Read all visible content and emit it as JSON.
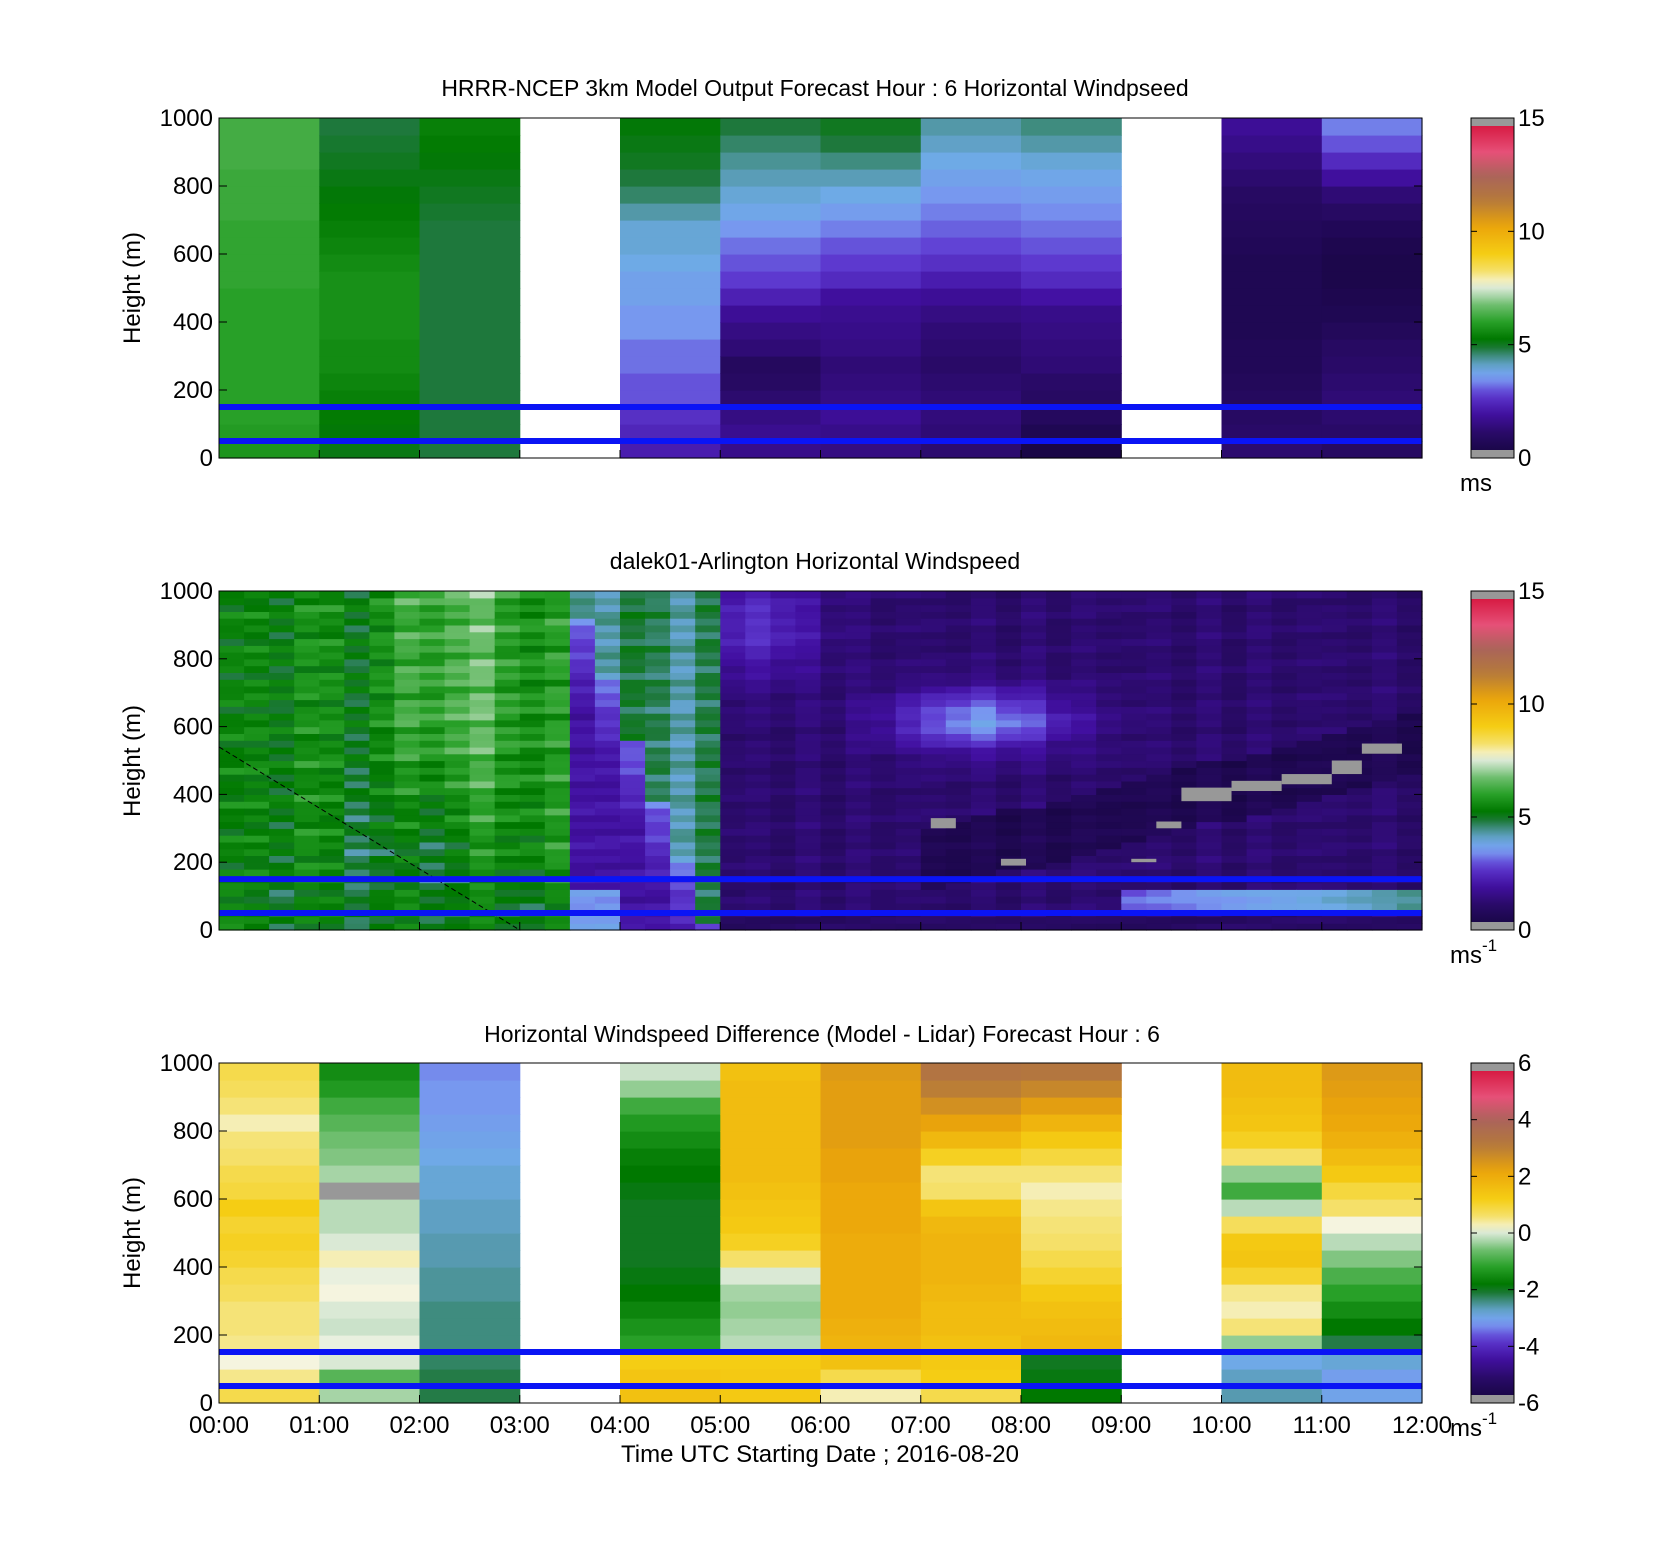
{
  "figure": {
    "xlabel": "Time UTC  Starting Date ; 2016-08-20",
    "x_tick_labels": [
      "00:00",
      "01:00",
      "02:00",
      "03:00",
      "04:00",
      "05:00",
      "06:00",
      "07:00",
      "08:00",
      "09:00",
      "10:00",
      "11:00",
      "12:00"
    ],
    "reference_line_color": "#0a14f5"
  },
  "chart_data": [
    {
      "type": "heatmap",
      "id": "model",
      "title": "HRRR-NCEP 3km Model Output   Forecast Hour : 6 Horizontal Windpseed",
      "ylabel": "Height (m)",
      "y_ticks": [
        "0",
        "200",
        "400",
        "600",
        "800",
        "1000"
      ],
      "ylim": [
        0,
        1000
      ],
      "xlim_hours": [
        0,
        12
      ],
      "colorbar": {
        "min": 0,
        "max": 15,
        "ticks": [
          "0",
          "5",
          "10",
          "15"
        ],
        "unit": "ms",
        "unit_sup": ""
      },
      "reference_lines_m": [
        50,
        150
      ],
      "heights_m": [
        25,
        75,
        125,
        175,
        225,
        275,
        325,
        375,
        425,
        475,
        525,
        575,
        625,
        675,
        725,
        775,
        825,
        875,
        925,
        975
      ],
      "columns_hour_start": [
        0,
        1,
        2,
        3,
        4,
        5,
        6,
        7,
        8,
        9,
        10,
        11
      ],
      "values_ms": [
        [
          5.8,
          5.9,
          6.0,
          6.0,
          6.0,
          6.0,
          6.0,
          6.0,
          6.0,
          6.0,
          6.1,
          6.1,
          6.1,
          6.1,
          6.2,
          6.2,
          6.2,
          6.3,
          6.3,
          6.3
        ],
        [
          5.1,
          5.2,
          5.3,
          5.4,
          5.5,
          5.6,
          5.6,
          5.7,
          5.7,
          5.7,
          5.7,
          5.6,
          5.5,
          5.4,
          5.3,
          5.2,
          5.1,
          5.0,
          4.9,
          4.8
        ],
        [
          4.8,
          4.8,
          4.8,
          4.8,
          4.8,
          4.8,
          4.8,
          4.8,
          4.8,
          4.8,
          4.8,
          4.8,
          4.8,
          4.8,
          4.9,
          5.0,
          5.1,
          5.2,
          5.3,
          5.4
        ],
        [
          null,
          null,
          null,
          null,
          null,
          null,
          null,
          null,
          null,
          null,
          null,
          null,
          null,
          null,
          null,
          null,
          null,
          null,
          null,
          null
        ],
        [
          2.2,
          2.4,
          2.6,
          3.0,
          3.0,
          3.2,
          3.2,
          3.5,
          3.5,
          3.7,
          3.7,
          3.9,
          4.0,
          4.0,
          4.3,
          4.6,
          4.8,
          5.0,
          5.1,
          5.2
        ],
        [
          1.6,
          1.7,
          1.5,
          1.2,
          1.0,
          0.9,
          1.3,
          1.5,
          1.8,
          2.3,
          2.8,
          3.0,
          3.2,
          3.5,
          3.8,
          4.0,
          4.2,
          4.4,
          4.6,
          4.8
        ],
        [
          1.5,
          1.6,
          1.8,
          1.5,
          1.4,
          1.3,
          1.5,
          1.6,
          1.7,
          1.9,
          2.5,
          2.8,
          3.0,
          3.3,
          3.6,
          3.9,
          4.2,
          4.5,
          4.8,
          5.0
        ],
        [
          1.2,
          1.3,
          1.4,
          1.3,
          1.2,
          1.1,
          1.2,
          1.3,
          1.5,
          1.8,
          2.2,
          2.6,
          2.9,
          3.1,
          3.3,
          3.5,
          3.7,
          3.9,
          4.1,
          4.3
        ],
        [
          0.3,
          0.6,
          0.9,
          1.0,
          1.1,
          1.3,
          1.4,
          1.5,
          1.6,
          2.0,
          2.5,
          2.8,
          3.0,
          3.2,
          3.4,
          3.6,
          3.8,
          4.0,
          4.3,
          4.5
        ],
        [
          null,
          null,
          null,
          null,
          null,
          null,
          null,
          null,
          null,
          null,
          null,
          null,
          null,
          null,
          null,
          null,
          null,
          null,
          null,
          null
        ],
        [
          1.2,
          1.1,
          1.0,
          0.9,
          0.8,
          0.7,
          0.7,
          0.6,
          0.6,
          0.6,
          0.6,
          0.6,
          0.7,
          0.8,
          0.9,
          1.0,
          1.2,
          1.4,
          1.6,
          1.8
        ],
        [
          1.0,
          1.1,
          1.2,
          1.3,
          1.2,
          1.1,
          1.0,
          0.8,
          0.6,
          0.5,
          0.4,
          0.4,
          0.5,
          0.7,
          1.0,
          1.3,
          1.9,
          2.5,
          3.0,
          3.3
        ]
      ]
    },
    {
      "type": "heatmap",
      "id": "lidar",
      "title": "dalek01-Arlington  Horizontal Windspeed",
      "ylabel": "Height (m)",
      "y_ticks": [
        "0",
        "200",
        "400",
        "600",
        "800",
        "1000"
      ],
      "ylim": [
        0,
        1000
      ],
      "xlim_hours": [
        0,
        12
      ],
      "data_end_hour": 11.8,
      "colorbar": {
        "min": 0,
        "max": 15,
        "ticks": [
          "0",
          "5",
          "10",
          "15"
        ],
        "unit": "ms",
        "unit_sup": "-1"
      },
      "reference_lines_m": [
        50,
        150
      ],
      "dashed_line_m": [
        [
          0.0,
          540
        ],
        [
          3.0,
          0
        ]
      ],
      "invalid_blocks": [
        {
          "t0": 7.1,
          "t1": 7.35,
          "z0": 300,
          "z1": 330
        },
        {
          "t0": 7.8,
          "t1": 8.05,
          "z0": 190,
          "z1": 210
        },
        {
          "t0": 9.1,
          "t1": 9.35,
          "z0": 200,
          "z1": 210
        },
        {
          "t0": 9.35,
          "t1": 9.6,
          "z0": 300,
          "z1": 320
        },
        {
          "t0": 9.6,
          "t1": 10.1,
          "z0": 380,
          "z1": 420
        },
        {
          "t0": 10.1,
          "t1": 10.6,
          "z0": 410,
          "z1": 440
        },
        {
          "t0": 10.6,
          "t1": 11.1,
          "z0": 430,
          "z1": 460
        },
        {
          "t0": 11.1,
          "t1": 11.4,
          "z0": 460,
          "z1": 500
        },
        {
          "t0": 11.4,
          "t1": 11.8,
          "z0": 520,
          "z1": 550
        }
      ]
    },
    {
      "type": "heatmap",
      "id": "difference",
      "title": "Horizontal Windspeed Difference (Model - Lidar) Forecast Hour : 6",
      "ylabel": "Height (m)",
      "y_ticks": [
        "0",
        "200",
        "400",
        "600",
        "800",
        "1000"
      ],
      "ylim": [
        0,
        1000
      ],
      "xlim_hours": [
        0,
        12
      ],
      "colorbar": {
        "min": -6,
        "max": 6,
        "ticks": [
          "-6",
          "-4",
          "-2",
          "0",
          "2",
          "4",
          "6"
        ],
        "unit": "ms",
        "unit_sup": "-1"
      },
      "reference_lines_m": [
        50,
        150
      ],
      "heights_m": [
        25,
        75,
        125,
        175,
        225,
        275,
        325,
        375,
        425,
        475,
        525,
        575,
        625,
        675,
        725,
        775,
        825,
        875,
        925,
        975
      ],
      "columns_hour_start": [
        0,
        1,
        2,
        3,
        4,
        5,
        6,
        7,
        8,
        9,
        10,
        11
      ],
      "values_ms": [
        [
          0.8,
          0.4,
          0.2,
          0.4,
          0.5,
          0.5,
          0.7,
          0.8,
          1.0,
          1.1,
          1.0,
          1.2,
          0.9,
          0.8,
          0.6,
          0.5,
          0.3,
          0.5,
          0.7,
          0.8
        ],
        [
          -0.3,
          -0.8,
          0.0,
          0.1,
          -0.1,
          0.0,
          0.2,
          0.1,
          0.3,
          0.0,
          -0.2,
          -0.2,
          null,
          -0.3,
          -0.5,
          -0.6,
          -0.8,
          -1.0,
          -1.3,
          -1.5
        ],
        [
          -2.2,
          -2.2,
          -2.3,
          -2.4,
          -2.4,
          -2.4,
          -2.5,
          -2.5,
          -2.6,
          -2.6,
          -2.7,
          -2.7,
          -2.8,
          -2.8,
          -2.9,
          -3.0,
          -3.1,
          -3.2,
          -3.2,
          -3.3
        ],
        [
          null,
          null,
          null,
          null,
          null,
          null,
          null,
          null,
          null,
          null,
          null,
          null,
          null,
          null,
          null,
          null,
          null,
          null,
          null,
          null
        ],
        [
          1.5,
          1.4,
          1.2,
          -1.2,
          -1.4,
          -1.6,
          -1.8,
          -1.9,
          -2.0,
          -2.0,
          -2.0,
          -2.0,
          -1.9,
          -1.8,
          -1.7,
          -1.5,
          -1.3,
          -1.0,
          -0.4,
          -0.1
        ],
        [
          1.3,
          1.3,
          1.2,
          -0.2,
          -0.3,
          -0.4,
          -0.3,
          0.0,
          0.6,
          1.1,
          1.3,
          1.4,
          1.5,
          1.6,
          1.6,
          1.6,
          1.6,
          1.6,
          1.6,
          1.5
        ],
        [
          0.3,
          0.8,
          1.5,
          1.8,
          1.9,
          2.0,
          2.0,
          2.0,
          2.0,
          2.0,
          2.1,
          2.1,
          2.1,
          2.2,
          2.2,
          2.3,
          2.3,
          2.3,
          2.3,
          2.4
        ],
        [
          0.8,
          1.2,
          1.3,
          1.5,
          1.6,
          1.6,
          1.7,
          1.8,
          1.8,
          1.8,
          1.7,
          1.4,
          0.6,
          0.5,
          1.1,
          1.7,
          2.2,
          2.6,
          3.0,
          3.3
        ],
        [
          -1.8,
          -1.9,
          -2.0,
          1.7,
          1.6,
          1.5,
          1.3,
          1.0,
          0.8,
          0.6,
          0.5,
          0.4,
          0.3,
          0.5,
          0.9,
          1.3,
          1.8,
          2.3,
          2.8,
          3.2
        ],
        [
          null,
          null,
          null,
          null,
          null,
          null,
          null,
          null,
          null,
          null,
          null,
          null,
          null,
          null,
          null,
          null,
          null,
          null,
          null,
          null
        ],
        [
          -2.6,
          -2.7,
          -2.9,
          -0.4,
          0.5,
          0.3,
          0.4,
          1.0,
          1.4,
          1.3,
          0.7,
          -0.2,
          -1.0,
          -0.4,
          0.6,
          1.1,
          1.4,
          1.5,
          1.6,
          1.6
        ],
        [
          -3.0,
          -3.1,
          -2.8,
          -2.2,
          -1.8,
          -1.5,
          -1.2,
          -0.9,
          -0.5,
          -0.2,
          0.2,
          0.6,
          0.9,
          1.3,
          1.6,
          1.9,
          2.1,
          2.2,
          2.3,
          2.4
        ]
      ]
    }
  ]
}
